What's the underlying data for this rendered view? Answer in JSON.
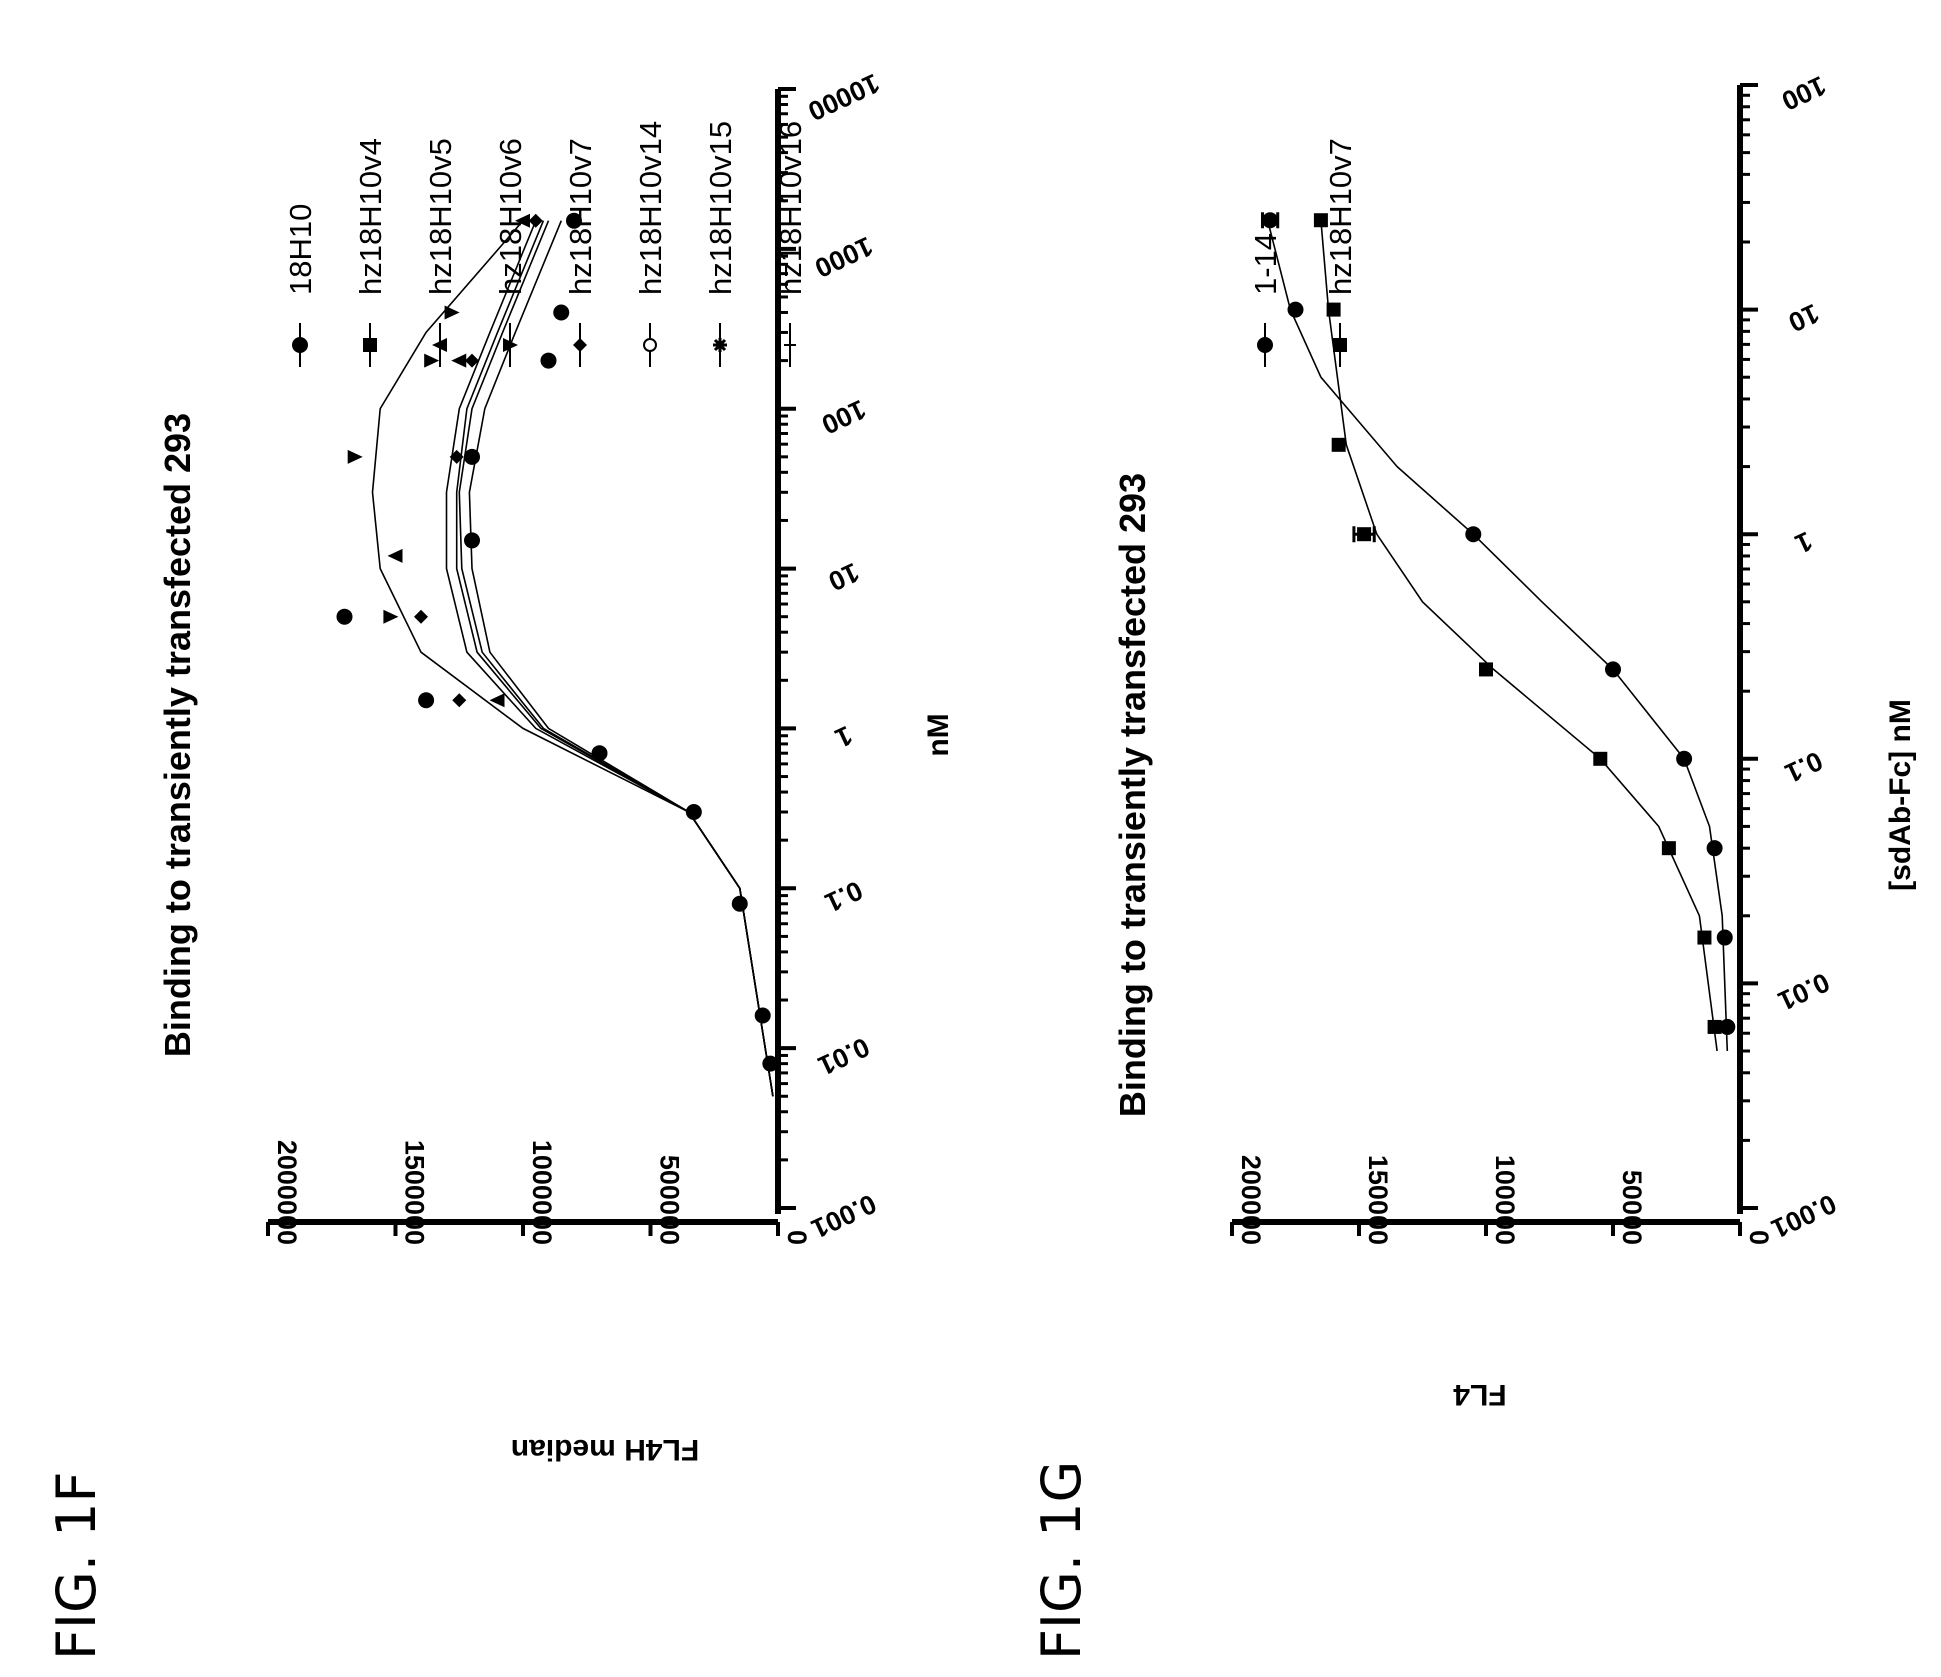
{
  "figures": [
    {
      "label": "FIG. 1F"
    },
    {
      "label": "FIG. 1G"
    }
  ],
  "chart_data": [
    {
      "type": "scatter",
      "title": "Binding to transiently transfected 293",
      "xlabel": "nM",
      "ylabel": "FL4H median",
      "x_scale": "log",
      "xlim": [
        0.001,
        10000
      ],
      "ylim": [
        0,
        2000000
      ],
      "x_ticks": [
        "0.001",
        "0.01",
        "0.1",
        "1",
        "10",
        "100",
        "1000",
        "10000"
      ],
      "y_ticks": [
        "0",
        "500000",
        "1000000",
        "1500000",
        "2000000"
      ],
      "legend_position": "right",
      "series": [
        {
          "name": "18H10",
          "marker": "circle",
          "x": [
            0.008,
            0.016,
            0.08,
            0.3,
            0.7,
            1.5,
            5,
            15,
            50,
            200,
            400,
            1500
          ],
          "y": [
            30000,
            60000,
            150000,
            330000,
            700000,
            1380000,
            1700000,
            1200000,
            1200000,
            900000,
            850000,
            800000
          ],
          "fit": [
            [
              0.005,
              20000
            ],
            [
              0.1,
              150000
            ],
            [
              0.3,
              350000
            ],
            [
              1,
              900000
            ],
            [
              3,
              1130000
            ],
            [
              10,
              1200000
            ],
            [
              30,
              1210000
            ],
            [
              100,
              1150000
            ],
            [
              300,
              1030000
            ],
            [
              1500,
              850000
            ]
          ]
        },
        {
          "name": "hz18H10v4",
          "marker": "square",
          "x": [],
          "y": [],
          "fit": [
            [
              0.005,
              20000
            ],
            [
              0.1,
              150000
            ],
            [
              0.3,
              350000
            ],
            [
              1,
              920000
            ],
            [
              3,
              1160000
            ],
            [
              10,
              1240000
            ],
            [
              30,
              1250000
            ],
            [
              100,
              1200000
            ],
            [
              300,
              1080000
            ],
            [
              1500,
              900000
            ]
          ]
        },
        {
          "name": "hz18H10v5",
          "marker": "triangle-up",
          "x": [
            1.5,
            12,
            200,
            1500
          ],
          "y": [
            1100000,
            1500000,
            1250000,
            1000000
          ],
          "fit": [
            [
              0.005,
              20000
            ],
            [
              0.1,
              150000
            ],
            [
              0.3,
              350000
            ],
            [
              1,
              950000
            ],
            [
              3,
              1220000
            ],
            [
              10,
              1300000
            ],
            [
              30,
              1300000
            ],
            [
              100,
              1250000
            ],
            [
              300,
              1130000
            ],
            [
              1500,
              950000
            ]
          ]
        },
        {
          "name": "hz18H10v6",
          "marker": "triangle-down",
          "x": [
            5,
            50,
            200,
            400
          ],
          "y": [
            1520000,
            1660000,
            1360000,
            1280000
          ],
          "fit": [
            [
              0.005,
              20000
            ],
            [
              0.1,
              150000
            ],
            [
              0.3,
              350000
            ],
            [
              1,
              1000000
            ],
            [
              3,
              1400000
            ],
            [
              10,
              1560000
            ],
            [
              30,
              1590000
            ],
            [
              100,
              1560000
            ],
            [
              300,
              1380000
            ],
            [
              1500,
              1000000
            ]
          ]
        },
        {
          "name": "hz18H10v7",
          "marker": "diamond",
          "x": [
            1.5,
            5,
            50,
            200,
            1500
          ],
          "y": [
            1250000,
            1400000,
            1260000,
            1200000,
            950000
          ],
          "fit": [
            [
              0.005,
              20000
            ],
            [
              0.1,
              150000
            ],
            [
              0.3,
              350000
            ],
            [
              1,
              930000
            ],
            [
              3,
              1180000
            ],
            [
              10,
              1260000
            ],
            [
              30,
              1260000
            ],
            [
              100,
              1220000
            ],
            [
              300,
              1100000
            ],
            [
              1500,
              920000
            ]
          ]
        },
        {
          "name": "hz18H10v14",
          "marker": "circle-open",
          "x": [],
          "y": [],
          "fit": []
        },
        {
          "name": "hz18H10v15",
          "marker": "star",
          "x": [],
          "y": [],
          "fit": []
        },
        {
          "name": "hz18H10v16",
          "marker": "cross",
          "x": [],
          "y": [],
          "fit": []
        }
      ]
    },
    {
      "type": "scatter",
      "title": "Binding to transiently transfected 293",
      "xlabel": "[sdAb-Fc] nM",
      "ylabel": "FL4",
      "x_scale": "log",
      "xlim": [
        0.001,
        100
      ],
      "ylim": [
        0,
        200000
      ],
      "x_ticks": [
        "0.001",
        "0.01",
        "0.1",
        "1",
        "10",
        "100"
      ],
      "y_ticks": [
        "0",
        "50000",
        "100000",
        "150000",
        "200000"
      ],
      "legend_position": "right",
      "series": [
        {
          "name": "1-14",
          "marker": "circle",
          "x": [
            0.0064,
            0.016,
            0.04,
            0.1,
            0.25,
            1,
            10,
            25
          ],
          "y": [
            5000,
            6000,
            10000,
            22000,
            50000,
            105000,
            175000,
            185000
          ],
          "error": [
            0,
            0,
            0,
            0,
            0,
            0,
            0,
            3000
          ],
          "fit": [
            [
              0.005,
              5000
            ],
            [
              0.02,
              7000
            ],
            [
              0.05,
              12000
            ],
            [
              0.1,
              22000
            ],
            [
              0.25,
              50000
            ],
            [
              0.5,
              78000
            ],
            [
              1,
              105000
            ],
            [
              2,
              135000
            ],
            [
              5,
              165000
            ],
            [
              10,
              177000
            ],
            [
              25,
              186000
            ]
          ]
        },
        {
          "name": "hz18H10v7",
          "marker": "square",
          "x": [
            0.0064,
            0.016,
            0.04,
            0.1,
            0.25,
            1,
            2.5,
            10,
            25
          ],
          "y": [
            10000,
            14000,
            28000,
            55000,
            100000,
            148000,
            158000,
            160000,
            165000
          ],
          "error": [
            0,
            0,
            0,
            0,
            0,
            4000,
            0,
            0,
            0
          ],
          "fit": [
            [
              0.005,
              9000
            ],
            [
              0.02,
              16000
            ],
            [
              0.05,
              32000
            ],
            [
              0.1,
              55000
            ],
            [
              0.25,
              97000
            ],
            [
              0.5,
              125000
            ],
            [
              1,
              143000
            ],
            [
              2.5,
              155000
            ],
            [
              10,
              162000
            ],
            [
              25,
              165000
            ]
          ]
        }
      ]
    }
  ]
}
